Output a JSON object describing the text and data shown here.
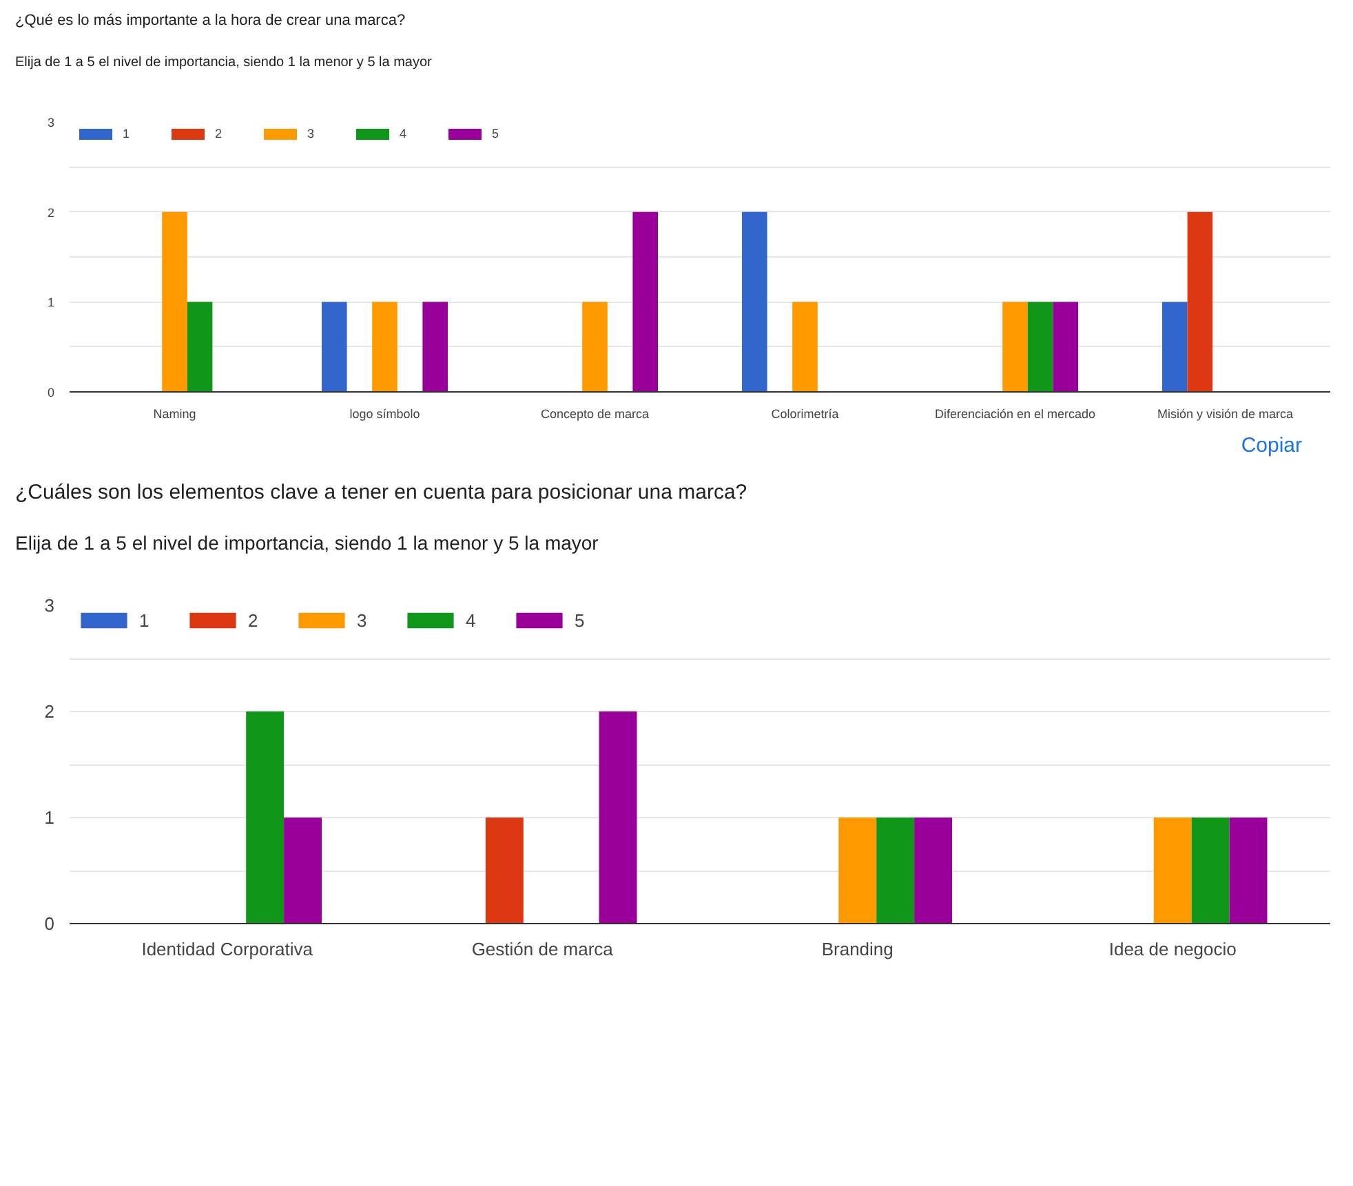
{
  "chart_data": [
    {
      "type": "bar",
      "title": "¿Qué es lo más importante a la hora de crear una marca?",
      "subtitle": "Elija de 1 a 5 el nivel de importancia, siendo 1 la menor y 5 la mayor",
      "categories": [
        "Naming",
        "logo símbolo",
        "Concepto de marca",
        "Colorimetría",
        "Diferenciación en el mercado",
        "Misión y visión de marca"
      ],
      "series": [
        {
          "name": "1",
          "color": "#3366cc",
          "values": [
            0,
            1,
            0,
            2,
            0,
            1
          ]
        },
        {
          "name": "2",
          "color": "#dc3912",
          "values": [
            0,
            0,
            0,
            0,
            0,
            2
          ]
        },
        {
          "name": "3",
          "color": "#ff9900",
          "values": [
            2,
            1,
            1,
            1,
            1,
            0
          ]
        },
        {
          "name": "4",
          "color": "#109618",
          "values": [
            1,
            0,
            0,
            0,
            1,
            0
          ]
        },
        {
          "name": "5",
          "color": "#990099",
          "values": [
            0,
            1,
            2,
            0,
            1,
            0
          ]
        }
      ],
      "ylim": [
        0,
        3
      ],
      "yticks": [
        0,
        {
          "value": 0.5,
          "label": null
        },
        1,
        {
          "value": 1.5,
          "label": null
        },
        2,
        {
          "value": 2.5,
          "label": null
        },
        3
      ],
      "grid": "y",
      "legend": "top left"
    },
    {
      "type": "bar",
      "title": "¿Cuáles son los elementos clave a tener en cuenta para posicionar una marca?",
      "subtitle": "Elija de 1 a 5 el nivel de importancia, siendo 1 la menor y 5 la mayor",
      "annotations": [
        "Copiar"
      ],
      "categories": [
        "Identidad Corporativa",
        "Gestión de marca",
        "Branding",
        "Idea de negocio"
      ],
      "series": [
        {
          "name": "1",
          "color": "#3366cc",
          "values": [
            0,
            0,
            0,
            0
          ]
        },
        {
          "name": "2",
          "color": "#dc3912",
          "values": [
            0,
            1,
            0,
            0
          ]
        },
        {
          "name": "3",
          "color": "#ff9900",
          "values": [
            0,
            0,
            1,
            1
          ]
        },
        {
          "name": "4",
          "color": "#109618",
          "values": [
            2,
            0,
            1,
            1
          ]
        },
        {
          "name": "5",
          "color": "#990099",
          "values": [
            1,
            2,
            1,
            1
          ]
        }
      ],
      "ylim": [
        0,
        3
      ],
      "yticks": [
        0,
        {
          "value": 0.5,
          "label": null
        },
        1,
        {
          "value": 1.5,
          "label": null
        },
        2,
        {
          "value": 2.5,
          "label": null
        },
        3
      ],
      "grid": "y",
      "legend": "top left"
    }
  ]
}
